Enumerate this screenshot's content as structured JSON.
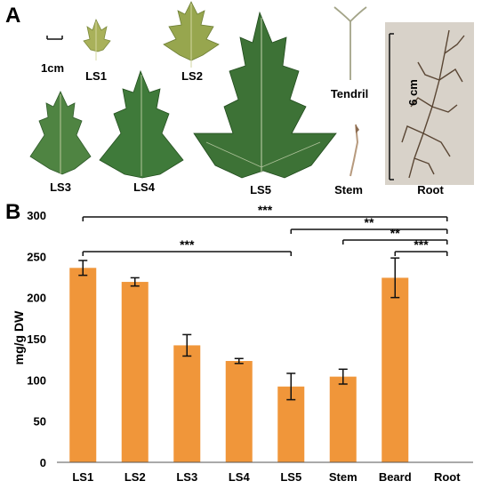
{
  "panel_a": {
    "letter": "A",
    "scale_bar_label": "1cm",
    "specimens": [
      {
        "label": "LS1",
        "kind": "leaf"
      },
      {
        "label": "LS2",
        "kind": "leaf"
      },
      {
        "label": "LS3",
        "kind": "leaf"
      },
      {
        "label": "LS4",
        "kind": "leaf"
      },
      {
        "label": "LS5",
        "kind": "leaf"
      },
      {
        "label": "Tendril",
        "kind": "tendril"
      },
      {
        "label": "Stem",
        "kind": "stem"
      },
      {
        "label": "Root",
        "kind": "root"
      }
    ],
    "root_scale_label": "6 cm",
    "colors": {
      "leaf_light": "#a9b15a",
      "leaf_dark": "#3f7a3a",
      "photo_bg": "#d8d2c9",
      "root": "#5a4634"
    }
  },
  "panel_b": {
    "letter": "B"
  },
  "chart_data": {
    "type": "bar",
    "categories": [
      "LS1",
      "LS2",
      "LS3",
      "LS4",
      "LS5",
      "Stem",
      "Beard",
      "Root"
    ],
    "values": [
      236,
      219,
      142,
      123,
      92,
      104,
      224,
      0
    ],
    "errors": [
      9,
      5,
      13,
      3,
      16,
      9,
      24,
      0
    ],
    "ylabel": "mg/g DW",
    "ylim": [
      0,
      300
    ],
    "yticks": [
      "0",
      "50",
      "100",
      "150",
      "200",
      "250",
      "300"
    ],
    "bar_color": "#f0963a",
    "significance": [
      {
        "from": "LS1",
        "to": "Root",
        "label": "***"
      },
      {
        "from": "LS5",
        "to": "Root",
        "label": "**"
      },
      {
        "from": "Stem",
        "to": "Root",
        "label": "**"
      },
      {
        "from": "Beard",
        "to": "Root",
        "label": "***"
      },
      {
        "from": "LS1",
        "to": "LS5",
        "label": "***"
      }
    ]
  }
}
